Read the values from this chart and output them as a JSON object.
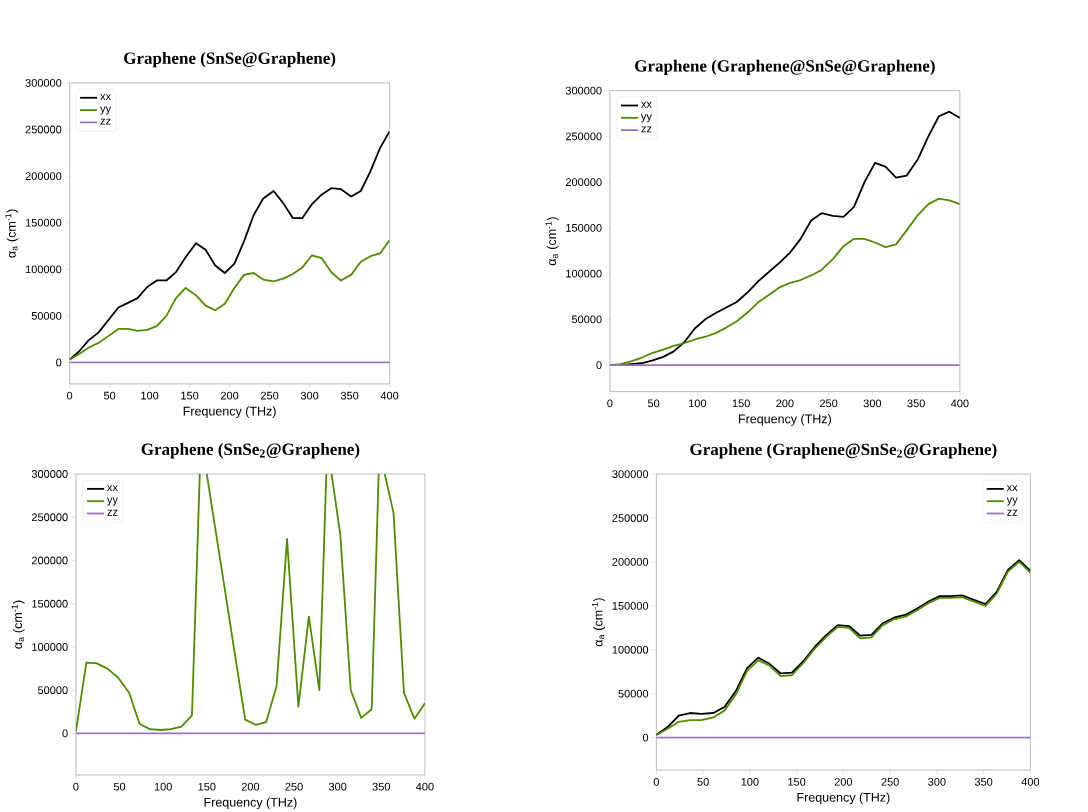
{
  "chart_data": [
    {
      "type": "line",
      "title": "Graphene (SnSe@Graphene)",
      "xlabel": "Frequency (THz)",
      "ylabel": "α$_{a}$ (cm$^{-1}$)",
      "xlim": [
        0,
        400
      ],
      "ylim": [
        -23000,
        300000
      ],
      "xticks": [
        0,
        50,
        100,
        150,
        200,
        250,
        300,
        350,
        400
      ],
      "yticks": [
        0,
        50000,
        100000,
        150000,
        200000,
        250000,
        300000
      ],
      "legend": "top left",
      "x": [
        0,
        12,
        24,
        36,
        48,
        61,
        73,
        85,
        97,
        109,
        121,
        133,
        145,
        158,
        170,
        182,
        194,
        206,
        218,
        230,
        242,
        255,
        267,
        279,
        291,
        303,
        315,
        327,
        339,
        352,
        364,
        376,
        388,
        400
      ],
      "series": [
        {
          "name": "xx",
          "color": "#000000",
          "values": [
            3000,
            12000,
            24000,
            32000,
            45000,
            59000,
            64000,
            69000,
            81000,
            88000,
            88000,
            97000,
            113000,
            128000,
            121000,
            104000,
            96000,
            106000,
            130000,
            158000,
            176000,
            184000,
            171000,
            155000,
            155000,
            170000,
            180000,
            187000,
            186000,
            178000,
            184000,
            205000,
            230000,
            248000
          ]
        },
        {
          "name": "yy",
          "color": "#4f8c00",
          "values": [
            3000,
            9000,
            16000,
            21000,
            28000,
            36000,
            36000,
            34000,
            35000,
            39000,
            50000,
            69000,
            80000,
            72000,
            61000,
            56000,
            63000,
            80000,
            94000,
            96000,
            89000,
            87000,
            90000,
            95000,
            102000,
            115000,
            112000,
            97000,
            88000,
            94000,
            108000,
            114000,
            117000,
            131000
          ]
        },
        {
          "name": "zz",
          "color": "#9b72c0",
          "values": [
            0,
            0,
            0,
            0,
            0,
            0,
            0,
            0,
            0,
            0,
            0,
            0,
            0,
            0,
            0,
            0,
            0,
            0,
            0,
            0,
            0,
            0,
            0,
            0,
            0,
            0,
            0,
            0,
            0,
            0,
            0,
            0,
            0,
            0
          ]
        }
      ]
    },
    {
      "type": "line",
      "title": "Graphene (Graphene@SnSe@Graphene)",
      "xlabel": "Frequency (THz)",
      "ylabel": "α$_{a}$ (cm$^{-1}$)",
      "xlim": [
        0,
        400
      ],
      "ylim": [
        -29000,
        300000
      ],
      "xticks": [
        0,
        50,
        100,
        150,
        200,
        250,
        300,
        350,
        400
      ],
      "yticks": [
        0,
        50000,
        100000,
        150000,
        200000,
        250000,
        300000
      ],
      "legend": "top left",
      "x": [
        0,
        12,
        24,
        36,
        48,
        61,
        73,
        85,
        97,
        109,
        121,
        133,
        145,
        158,
        170,
        182,
        194,
        206,
        218,
        230,
        242,
        255,
        267,
        279,
        291,
        303,
        315,
        327,
        339,
        352,
        364,
        376,
        388,
        400
      ],
      "series": [
        {
          "name": "xx",
          "color": "#000000",
          "values": [
            0,
            0,
            1000,
            2000,
            5000,
            9000,
            15000,
            25000,
            40000,
            50000,
            57000,
            63000,
            69000,
            80000,
            92000,
            102000,
            112000,
            123000,
            138000,
            158000,
            166000,
            163000,
            162000,
            173000,
            200000,
            221000,
            217000,
            205000,
            207000,
            225000,
            250000,
            272000,
            277000,
            270000
          ]
        },
        {
          "name": "yy",
          "color": "#4f8c00",
          "values": [
            0,
            1000,
            4000,
            8000,
            13000,
            17000,
            21000,
            24000,
            28000,
            31000,
            35000,
            41000,
            48000,
            58000,
            69000,
            77000,
            85000,
            90000,
            93000,
            98000,
            104000,
            116000,
            130000,
            138000,
            138000,
            134000,
            129000,
            132000,
            147000,
            164000,
            176000,
            182000,
            180000,
            176000
          ]
        },
        {
          "name": "zz",
          "color": "#9b72c0",
          "values": [
            0,
            0,
            0,
            0,
            0,
            0,
            0,
            0,
            0,
            0,
            0,
            0,
            0,
            0,
            0,
            0,
            0,
            0,
            0,
            0,
            0,
            0,
            0,
            0,
            0,
            0,
            0,
            0,
            0,
            0,
            0,
            0,
            0,
            0
          ]
        }
      ]
    },
    {
      "type": "line",
      "title": "Graphene (SnSe$_{2}$@Graphene)",
      "xlabel": "Frequency (THz)",
      "ylabel": "α$_{a}$ (cm$^{-1}$)",
      "xlim": [
        0,
        400
      ],
      "ylim": [
        -48000,
        300000
      ],
      "xticks": [
        0,
        50,
        100,
        150,
        200,
        250,
        300,
        350,
        400
      ],
      "yticks": [
        0,
        50000,
        100000,
        150000,
        200000,
        250000,
        300000
      ],
      "legend": "top left",
      "x": [
        0,
        12,
        24,
        36,
        48,
        61,
        73,
        85,
        97,
        109,
        121,
        133,
        142,
        145,
        150,
        158,
        170,
        182,
        194,
        206,
        218,
        230,
        242,
        255,
        267,
        279,
        287,
        291,
        293,
        303,
        315,
        327,
        339,
        347,
        352,
        354,
        364,
        376,
        388,
        400
      ],
      "series": [
        {
          "name": "xx",
          "color": "#000000",
          "values": [
            null,
            null,
            null,
            null,
            null,
            null,
            null,
            null,
            null,
            null,
            null,
            null,
            null,
            null,
            null,
            null,
            null,
            null,
            null,
            null,
            null,
            null,
            null,
            null,
            null,
            null,
            null,
            null,
            null,
            null,
            null,
            null,
            null,
            null,
            null,
            null,
            null,
            null,
            null,
            null
          ]
        },
        {
          "name": "yy",
          "color": "#4f8c00",
          "values": [
            2000,
            82000,
            81000,
            75000,
            65000,
            47000,
            11000,
            5000,
            4000,
            5000,
            8000,
            21000,
            300000,
            null,
            300000,
            248000,
            171000,
            93000,
            16000,
            10000,
            13000,
            55000,
            225000,
            31000,
            135000,
            50000,
            300000,
            null,
            300000,
            230000,
            50000,
            18000,
            28000,
            300000,
            null,
            300000,
            255000,
            47000,
            17000,
            35000
          ]
        },
        {
          "name": "zz",
          "color": "#9b72c0",
          "values": [
            0,
            0,
            0,
            0,
            0,
            0,
            0,
            0,
            0,
            0,
            0,
            0,
            0,
            0,
            0,
            0,
            0,
            0,
            0,
            0,
            0,
            0,
            0,
            0,
            0,
            0,
            0,
            0,
            0,
            0,
            0,
            0,
            0,
            0,
            0,
            0,
            0,
            0,
            0,
            0
          ]
        }
      ]
    },
    {
      "type": "line",
      "title": "Graphene (Graphene@SnSe$_{2}$@Graphene)",
      "xlabel": "Frequency (THz)",
      "ylabel": "α$_{a}$ (cm$^{-1}$)",
      "xlim": [
        0,
        400
      ],
      "ylim": [
        -37000,
        300000
      ],
      "xticks": [
        0,
        50,
        100,
        150,
        200,
        250,
        300,
        350,
        400
      ],
      "yticks": [
        0,
        50000,
        100000,
        150000,
        200000,
        250000,
        300000
      ],
      "legend": "top right",
      "x": [
        0,
        12,
        24,
        36,
        48,
        61,
        73,
        85,
        97,
        109,
        121,
        133,
        145,
        158,
        170,
        182,
        194,
        206,
        218,
        230,
        242,
        255,
        267,
        279,
        291,
        303,
        315,
        327,
        339,
        352,
        364,
        376,
        388,
        400
      ],
      "series": [
        {
          "name": "xx",
          "color": "#000000",
          "values": [
            3000,
            12000,
            25000,
            28000,
            27000,
            28000,
            35000,
            53000,
            79000,
            91000,
            84000,
            73000,
            74000,
            88000,
            104000,
            117000,
            128000,
            127000,
            116000,
            117000,
            130000,
            137000,
            140000,
            147000,
            155000,
            161000,
            161000,
            162000,
            157000,
            152000,
            166000,
            191000,
            202000,
            190000
          ]
        },
        {
          "name": "yy",
          "color": "#4f8c00",
          "values": [
            3000,
            10000,
            18000,
            20000,
            20000,
            23000,
            31000,
            49000,
            76000,
            88000,
            82000,
            70000,
            71000,
            86000,
            102000,
            115000,
            126000,
            125000,
            113000,
            114000,
            128000,
            135000,
            138000,
            145000,
            153000,
            159000,
            159000,
            160000,
            155000,
            150000,
            164000,
            189000,
            200000,
            188000
          ]
        },
        {
          "name": "zz",
          "color": "#9b72c0",
          "values": [
            0,
            0,
            0,
            0,
            0,
            0,
            0,
            0,
            0,
            0,
            0,
            0,
            0,
            0,
            0,
            0,
            0,
            0,
            0,
            0,
            0,
            0,
            0,
            0,
            0,
            0,
            0,
            0,
            0,
            0,
            0,
            0,
            0,
            0
          ]
        }
      ]
    }
  ]
}
